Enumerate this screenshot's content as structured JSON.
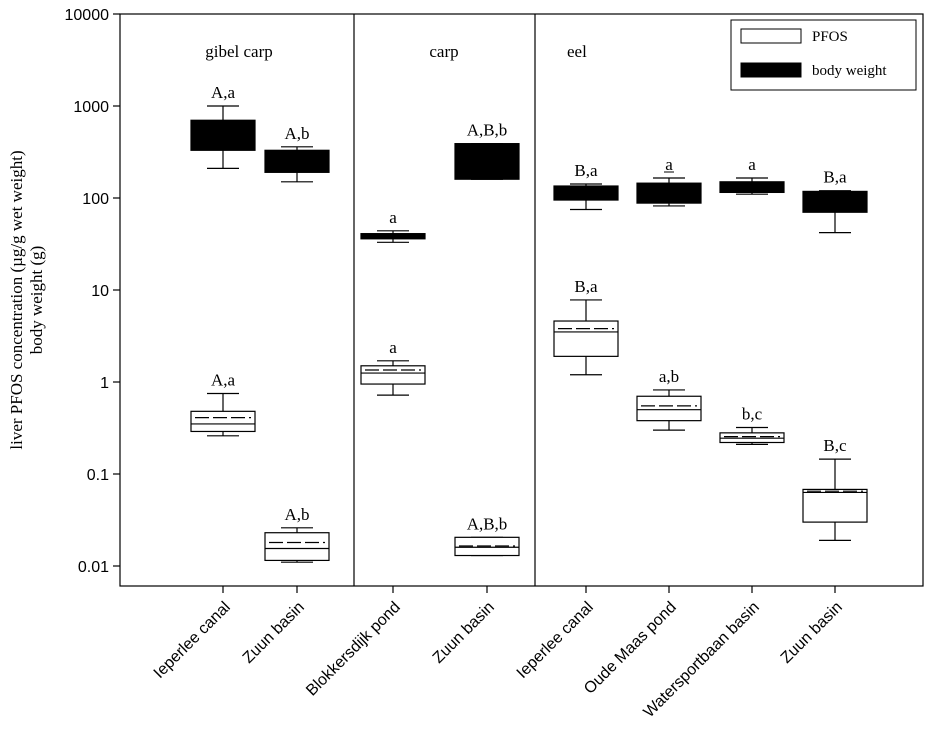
{
  "chart_data": {
    "type": "box",
    "y_scale": "log",
    "ylim": [
      0.01,
      10000
    ],
    "ylabel_line1": "liver PFOS concentration (µg/g wet weight)",
    "ylabel_line2": "body weight (g)",
    "y_ticks": [
      {
        "value": 10000,
        "label": "10000"
      },
      {
        "value": 1000,
        "label": "1000"
      },
      {
        "value": 100,
        "label": "100"
      },
      {
        "value": 10,
        "label": "10"
      },
      {
        "value": 1,
        "label": "1"
      },
      {
        "value": 0.1,
        "label": "0.1"
      },
      {
        "value": 0.01,
        "label": "0.01"
      }
    ],
    "panels": [
      {
        "label": "gibel carp",
        "from": 0,
        "to": 1
      },
      {
        "label": "carp",
        "from": 2,
        "to": 3
      },
      {
        "label": "eel",
        "from": 4,
        "to": 7
      }
    ],
    "categories": [
      "Ieperlee canal",
      "Zuun basin",
      "Blokkersdijk pond",
      "Zuun basin",
      "Ieperlee canal",
      "Oude Maas pond",
      "Watersportbaan basin",
      "Zuun basin"
    ],
    "legend": {
      "position": "top-right",
      "items": [
        {
          "name": "PFOS",
          "fill": "#ffffff"
        },
        {
          "name": "body weight",
          "fill": "#000000"
        }
      ]
    },
    "series": [
      {
        "name": "body weight",
        "fill": "#000000",
        "boxes": [
          {
            "category": 0,
            "whisker_low": 210,
            "q1": 330,
            "median": 460,
            "q3": 700,
            "whisker_high": 1000,
            "label": "A,a"
          },
          {
            "category": 1,
            "whisker_low": 150,
            "q1": 190,
            "median": 250,
            "q3": 330,
            "whisker_high": 360,
            "label": "A,b"
          },
          {
            "category": 2,
            "whisker_low": 33,
            "q1": 36,
            "median": 38,
            "q3": 41,
            "whisker_high": 44,
            "label": "a"
          },
          {
            "category": 3,
            "whisker_low": 160,
            "q1": 160,
            "median": 250,
            "q3": 390,
            "whisker_high": 390,
            "label": "A,B,b"
          },
          {
            "category": 4,
            "whisker_low": 75,
            "q1": 95,
            "median": 112,
            "q3": 135,
            "whisker_high": 142,
            "label": "B,a"
          },
          {
            "category": 5,
            "whisker_low": 82,
            "q1": 88,
            "median": 110,
            "q3": 145,
            "whisker_high": 165,
            "label": "a",
            "label_underlined": true
          },
          {
            "category": 6,
            "whisker_low": 110,
            "q1": 115,
            "median": 128,
            "q3": 150,
            "whisker_high": 165,
            "label": "a"
          },
          {
            "category": 7,
            "whisker_low": 42,
            "q1": 70,
            "median": 90,
            "q3": 118,
            "whisker_high": 120,
            "label": "B,a"
          }
        ]
      },
      {
        "name": "PFOS",
        "fill": "#ffffff",
        "boxes": [
          {
            "category": 0,
            "whisker_low": 0.26,
            "q1": 0.29,
            "median": 0.35,
            "mean": 0.41,
            "q3": 0.48,
            "whisker_high": 0.75,
            "label": "A,a"
          },
          {
            "category": 1,
            "whisker_low": 0.011,
            "q1": 0.0115,
            "median": 0.0155,
            "mean": 0.018,
            "q3": 0.023,
            "whisker_high": 0.026,
            "label": "A,b"
          },
          {
            "category": 2,
            "whisker_low": 0.72,
            "q1": 0.95,
            "median": 1.25,
            "mean": 1.35,
            "q3": 1.5,
            "whisker_high": 1.7,
            "label": "a"
          },
          {
            "category": 3,
            "whisker_low": 0.013,
            "q1": 0.013,
            "median": 0.016,
            "mean": 0.0165,
            "q3": 0.0205,
            "whisker_high": 0.0205,
            "label": "A,B,b"
          },
          {
            "category": 4,
            "whisker_low": 1.2,
            "q1": 1.9,
            "median": 3.5,
            "mean": 3.8,
            "q3": 4.6,
            "whisker_high": 7.8,
            "label": "B,a"
          },
          {
            "category": 5,
            "whisker_low": 0.3,
            "q1": 0.38,
            "median": 0.5,
            "mean": 0.55,
            "q3": 0.7,
            "whisker_high": 0.82,
            "label": "a,b"
          },
          {
            "category": 6,
            "whisker_low": 0.21,
            "q1": 0.22,
            "median": 0.245,
            "mean": 0.255,
            "q3": 0.28,
            "whisker_high": 0.32,
            "label": "b,c"
          },
          {
            "category": 7,
            "whisker_low": 0.019,
            "q1": 0.03,
            "median": 0.063,
            "mean": 0.065,
            "q3": 0.068,
            "whisker_high": 0.145,
            "label": "B,c"
          }
        ]
      }
    ]
  }
}
